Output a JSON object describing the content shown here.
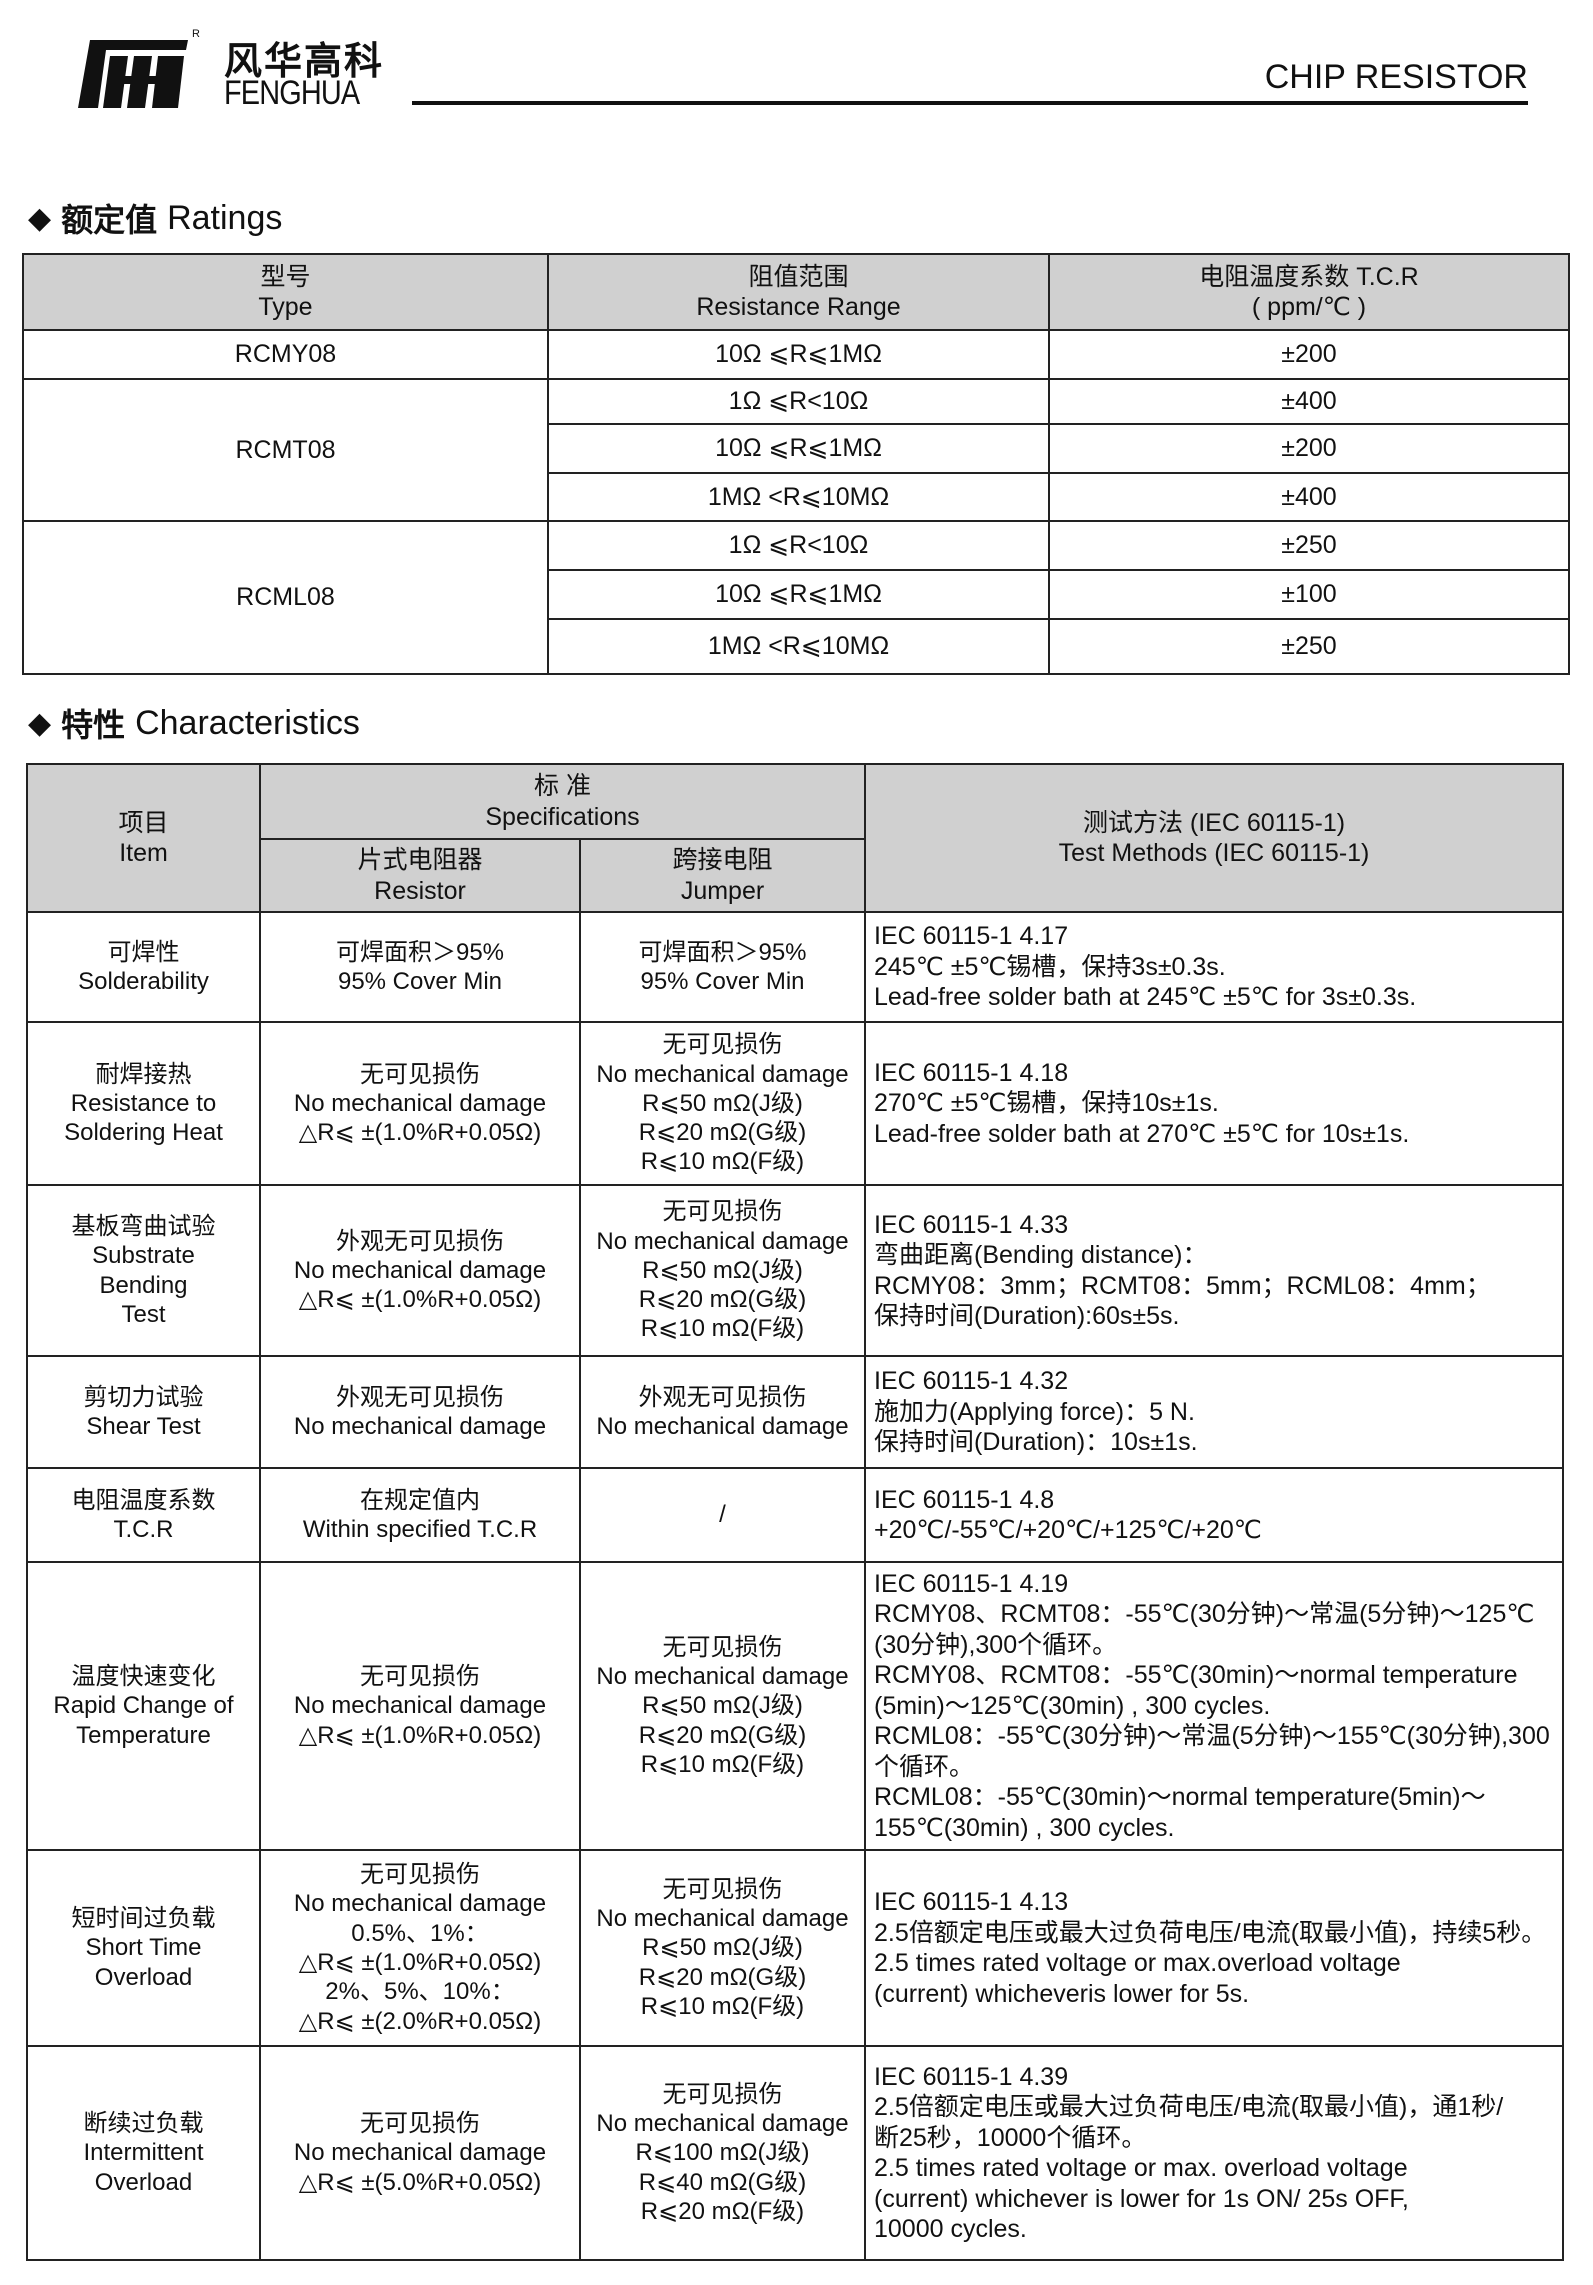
{
  "header": {
    "logo_cn": "风华高科",
    "logo_en": "FENGHUA",
    "logo_registered": "R",
    "title": "CHIP RESISTOR"
  },
  "ratings": {
    "title_cn": "额定值",
    "title_en": "Ratings",
    "columns": [
      {
        "cn": "型号",
        "en": "Type"
      },
      {
        "cn": "阻值范围",
        "en": "Resistance  Range"
      },
      {
        "cn": "电阻温度系数 T.C.R",
        "en": "( ppm/℃ )"
      }
    ],
    "rows": [
      {
        "type": "RCMY08",
        "ranges": [
          {
            "range": "10Ω ⩽R⩽1MΩ",
            "tcr": "±200"
          }
        ]
      },
      {
        "type": "RCMT08",
        "ranges": [
          {
            "range": "1Ω ⩽R<10Ω",
            "tcr": "±400"
          },
          {
            "range": "10Ω ⩽R⩽1MΩ",
            "tcr": "±200"
          },
          {
            "range": "1MΩ <R⩽10MΩ",
            "tcr": "±400"
          }
        ]
      },
      {
        "type": "RCML08",
        "ranges": [
          {
            "range": "1Ω ⩽R<10Ω",
            "tcr": "±250"
          },
          {
            "range": "10Ω ⩽R⩽1MΩ",
            "tcr": "±100"
          },
          {
            "range": "1MΩ <R⩽10MΩ",
            "tcr": "±250"
          }
        ]
      }
    ]
  },
  "characteristics": {
    "title_cn": "特性",
    "title_en": "Characteristics",
    "headers": {
      "item": [
        "项目",
        "Item"
      ],
      "spec": [
        "标 准",
        "Specifications"
      ],
      "chip": [
        "片式电阻器",
        "Resistor"
      ],
      "jumper": [
        "跨接电阻",
        "Jumper"
      ],
      "method": [
        "测试方法 (IEC 60115-1)",
        "Test Methods (IEC 60115-1)"
      ]
    },
    "rows": [
      {
        "item": [
          "可焊性",
          "Solderability"
        ],
        "chip": [
          "可焊面积＞95%",
          "95% Cover Min"
        ],
        "jumper": [
          "可焊面积＞95%",
          "95% Cover Min"
        ],
        "method": [
          "IEC 60115-1 4.17",
          "245℃ ±5℃锡槽，保持3s±0.3s.",
          "Lead-free solder bath at 245℃ ±5℃ for 3s±0.3s."
        ]
      },
      {
        "item": [
          "耐焊接热",
          "Resistance to",
          "Soldering Heat"
        ],
        "chip": [
          "无可见损伤",
          "No mechanical damage",
          "△R⩽ ±(1.0%R+0.05Ω)"
        ],
        "jumper": [
          "无可见损伤",
          "No mechanical damage",
          "R⩽50 mΩ(J级)",
          "R⩽20 mΩ(G级)",
          "R⩽10 mΩ(F级)"
        ],
        "method": [
          "IEC 60115-1 4.18",
          "270℃ ±5℃锡槽，保持10s±1s.",
          "Lead-free solder bath at 270℃ ±5℃ for 10s±1s."
        ]
      },
      {
        "item": [
          "基板弯曲试验",
          "Substrate",
          "Bending",
          "Test"
        ],
        "chip": [
          "外观无可见损伤",
          "No mechanical damage",
          "△R⩽ ±(1.0%R+0.05Ω)"
        ],
        "jumper": [
          "无可见损伤",
          "No mechanical damage",
          "R⩽50 mΩ(J级)",
          "R⩽20 mΩ(G级)",
          "R⩽10 mΩ(F级)"
        ],
        "method": [
          "IEC 60115-1 4.33",
          "弯曲距离(Bending distance)：",
          "RCMY08：3mm；RCMT08：5mm；RCML08：4mm；",
          "保持时间(Duration):60s±5s."
        ]
      },
      {
        "item": [
          "剪切力试验",
          "Shear Test"
        ],
        "chip": [
          "外观无可见损伤",
          "No mechanical damage"
        ],
        "jumper": [
          "外观无可见损伤",
          "No mechanical damage"
        ],
        "method": [
          "IEC 60115-1 4.32",
          "施加力(Applying force)：5 N.",
          "保持时间(Duration)：10s±1s."
        ]
      },
      {
        "item": [
          "电阻温度系数",
          "T.C.R"
        ],
        "chip": [
          "在规定值内",
          "Within specified T.C.R"
        ],
        "jumper": [
          "/"
        ],
        "method": [
          "IEC 60115-1 4.8",
          "+20℃/-55℃/+20℃/+125℃/+20℃"
        ]
      },
      {
        "item": [
          "温度快速变化",
          "Rapid Change of",
          "Temperature"
        ],
        "chip": [
          "无可见损伤",
          "No mechanical damage",
          "△R⩽ ±(1.0%R+0.05Ω)"
        ],
        "jumper": [
          "无可见损伤",
          "No mechanical damage",
          "R⩽50 mΩ(J级)",
          "R⩽20 mΩ(G级)",
          "R⩽10 mΩ(F级)"
        ],
        "method": [
          "IEC 60115-1 4.19",
          "RCMY08、RCMT08：-55℃(30分钟)～常温(5分钟)～125℃",
          "(30分钟),300个循环。",
          "RCMY08、RCMT08：-55℃(30min)～normal temperature",
          "(5min)～125℃(30min) , 300 cycles.",
          "RCML08：-55℃(30分钟)～常温(5分钟)～155℃(30分钟),300",
          "个循环。",
          "RCML08：-55℃(30min)～normal temperature(5min)～",
          "155℃(30min) , 300 cycles."
        ]
      },
      {
        "item": [
          "短时间过负载",
          "Short Time",
          "Overload"
        ],
        "chip": [
          "无可见损伤",
          "No mechanical damage",
          "0.5%、1%：",
          "△R⩽ ±(1.0%R+0.05Ω)",
          "2%、5%、10%：",
          "△R⩽ ±(2.0%R+0.05Ω)"
        ],
        "jumper": [
          "无可见损伤",
          "No mechanical damage",
          "R⩽50 mΩ(J级)",
          "R⩽20 mΩ(G级)",
          "R⩽10 mΩ(F级)"
        ],
        "method": [
          "IEC 60115-1 4.13",
          "2.5倍额定电压或最大过负荷电压/电流(取最小值)，持续5秒。",
          "2.5 times rated voltage or max.overload  voltage",
          "(current) whicheveris lower for 5s."
        ]
      },
      {
        "item": [
          "断续过负载",
          "Intermittent",
          "Overload"
        ],
        "chip": [
          "无可见损伤",
          "No mechanical damage",
          "△R⩽ ±(5.0%R+0.05Ω)"
        ],
        "jumper": [
          "无可见损伤",
          "No mechanical damage",
          "R⩽100 mΩ(J级)",
          "R⩽40 mΩ(G级)",
          "R⩽20 mΩ(F级)"
        ],
        "method": [
          "IEC 60115-1 4.39",
          "2.5倍额定电压或最大过负荷电压/电流(取最小值)，通1秒/",
          "断25秒，10000个循环。",
          "2.5 times rated voltage  or max. overload voltage",
          "(current) whichever is lower for 1s ON/ 25s OFF,",
          "10000 cycles."
        ]
      }
    ]
  }
}
